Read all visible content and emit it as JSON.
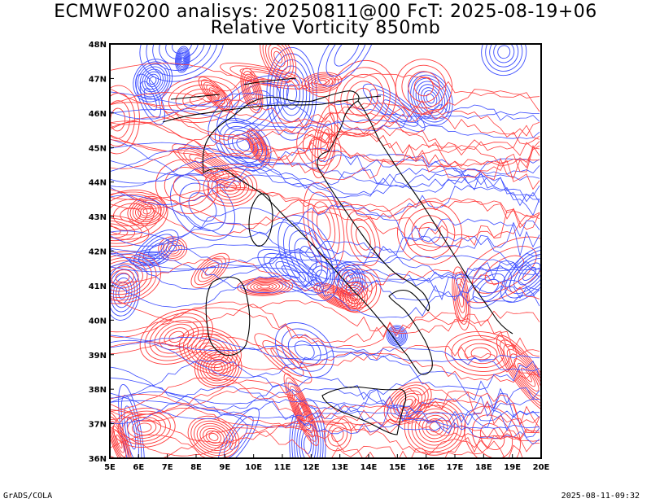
{
  "title": {
    "line1": "ECMWF0200 analisys: 20250811@00 FcT: 2025-08-19+06",
    "line2": "Relative Vorticity 850mb"
  },
  "map": {
    "lon_range": [
      5,
      20
    ],
    "lat_range": [
      36,
      48
    ],
    "lon_ticks": [
      "5E",
      "6E",
      "7E",
      "8E",
      "9E",
      "10E",
      "11E",
      "12E",
      "13E",
      "14E",
      "15E",
      "16E",
      "17E",
      "18E",
      "19E",
      "20E"
    ],
    "lat_ticks": [
      "36N",
      "37N",
      "38N",
      "39N",
      "40N",
      "41N",
      "42N",
      "43N",
      "44N",
      "45N",
      "46N",
      "47N",
      "48N"
    ],
    "colors": {
      "positive": "#ff3b3b",
      "negative": "#3b4cff",
      "coast": "#000000"
    }
  },
  "footer": {
    "left": "GrADS/COLA",
    "right": "2025-08-11-09:32"
  }
}
